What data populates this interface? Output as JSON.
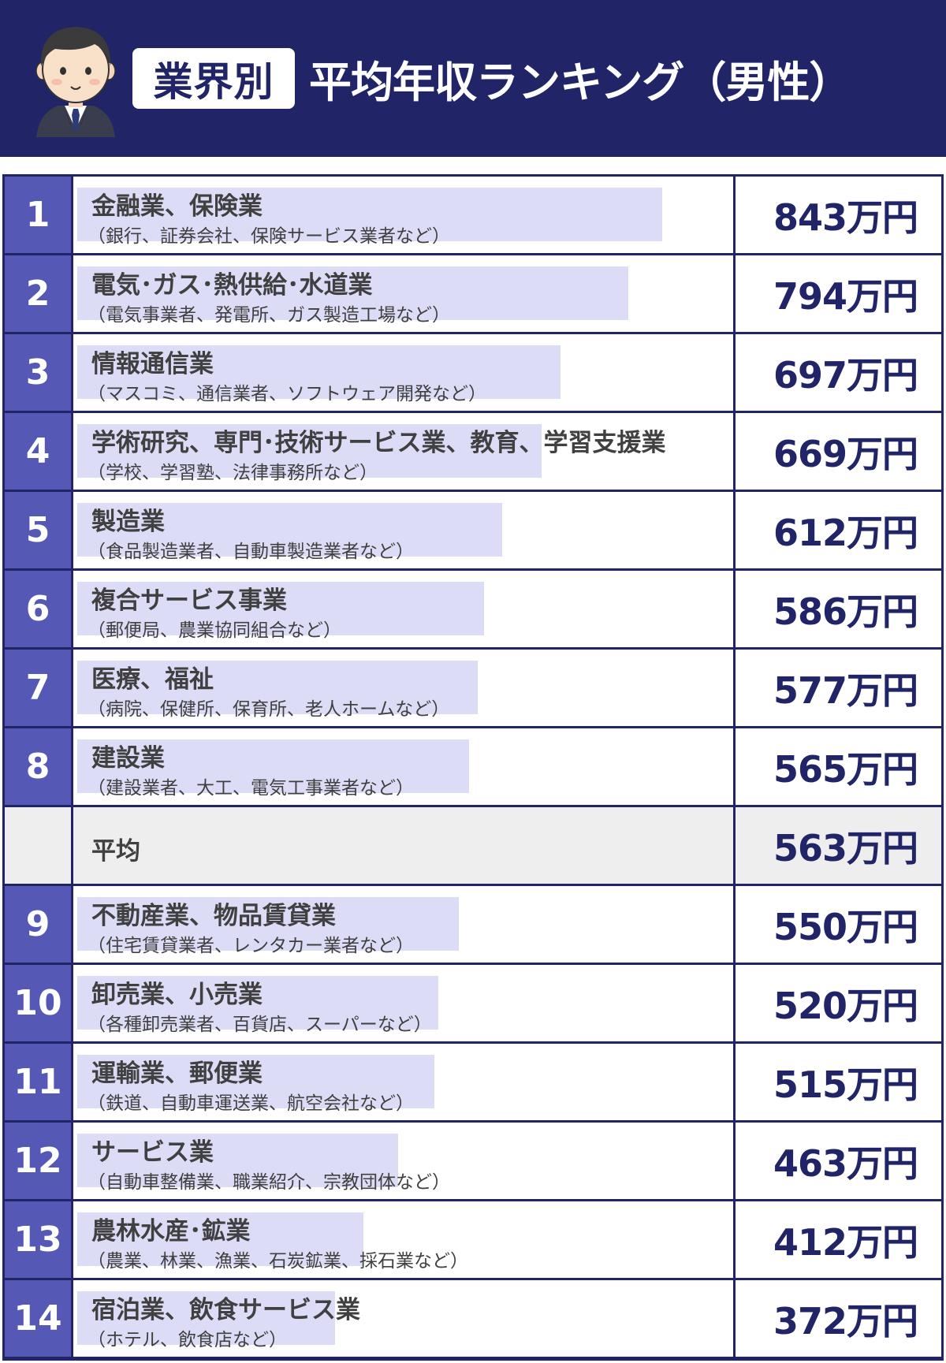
{
  "header": {
    "badge": "業界別",
    "title": "平均年収ランキング（男性）"
  },
  "chart_data": {
    "type": "bar",
    "unit": "万円",
    "rows": [
      {
        "rank": "1",
        "name": "金融業、保険業",
        "sub": "（銀行、証券会社、保険サービス業者など）",
        "value": 843,
        "value_label": "843万円"
      },
      {
        "rank": "2",
        "name": "電気･ガス･熱供給･水道業",
        "sub": "（電気事業者、発電所、ガス製造工場など）",
        "value": 794,
        "value_label": "794万円"
      },
      {
        "rank": "3",
        "name": "情報通信業",
        "sub": "（マスコミ、通信業者、ソフトウェア開発など）",
        "value": 697,
        "value_label": "697万円"
      },
      {
        "rank": "4",
        "name": "学術研究、専門･技術サービス業、教育、学習支援業",
        "sub": "（学校、学習塾、法律事務所など）",
        "value": 669,
        "value_label": "669万円"
      },
      {
        "rank": "5",
        "name": "製造業",
        "sub": "（食品製造業者、自動車製造業者など）",
        "value": 612,
        "value_label": "612万円"
      },
      {
        "rank": "6",
        "name": "複合サービス事業",
        "sub": "（郵便局、農業協同組合など）",
        "value": 586,
        "value_label": "586万円"
      },
      {
        "rank": "7",
        "name": "医療、福祉",
        "sub": "（病院、保健所、保育所、老人ホームなど）",
        "value": 577,
        "value_label": "577万円"
      },
      {
        "rank": "8",
        "name": "建設業",
        "sub": "（建設業者、大工、電気工事業者など）",
        "value": 565,
        "value_label": "565万円"
      },
      {
        "rank": "",
        "name": "平均",
        "sub": "",
        "value": 563,
        "value_label": "563万円",
        "average": true
      },
      {
        "rank": "9",
        "name": "不動産業、物品賃貸業",
        "sub": "（住宅賃貸業者、レンタカー業者など）",
        "value": 550,
        "value_label": "550万円"
      },
      {
        "rank": "10",
        "name": "卸売業、小売業",
        "sub": "（各種卸売業者、百貨店、スーパーなど）",
        "value": 520,
        "value_label": "520万円"
      },
      {
        "rank": "11",
        "name": "運輸業、郵便業",
        "sub": "（鉄道、自動車運送業、航空会社など）",
        "value": 515,
        "value_label": "515万円"
      },
      {
        "rank": "12",
        "name": "サービス業",
        "sub": "（自動車整備業、職業紹介、宗教団体など）",
        "value": 463,
        "value_label": "463万円"
      },
      {
        "rank": "13",
        "name": "農林水産･鉱業",
        "sub": "（農業、林業、漁業、石炭鉱業、採石業など）",
        "value": 412,
        "value_label": "412万円"
      },
      {
        "rank": "14",
        "name": "宿泊業、飲食サービス業",
        "sub": "（ホテル、飲食店など）",
        "value": 372,
        "value_label": "372万円"
      }
    ],
    "colors": {
      "header_bg": "#212467",
      "rank_bg": "#5558b4",
      "bar": "#dcdcf6",
      "average_bg": "#eeeeee",
      "value_text": "#212467"
    },
    "icons": [
      "businessman-avatar-icon"
    ]
  }
}
